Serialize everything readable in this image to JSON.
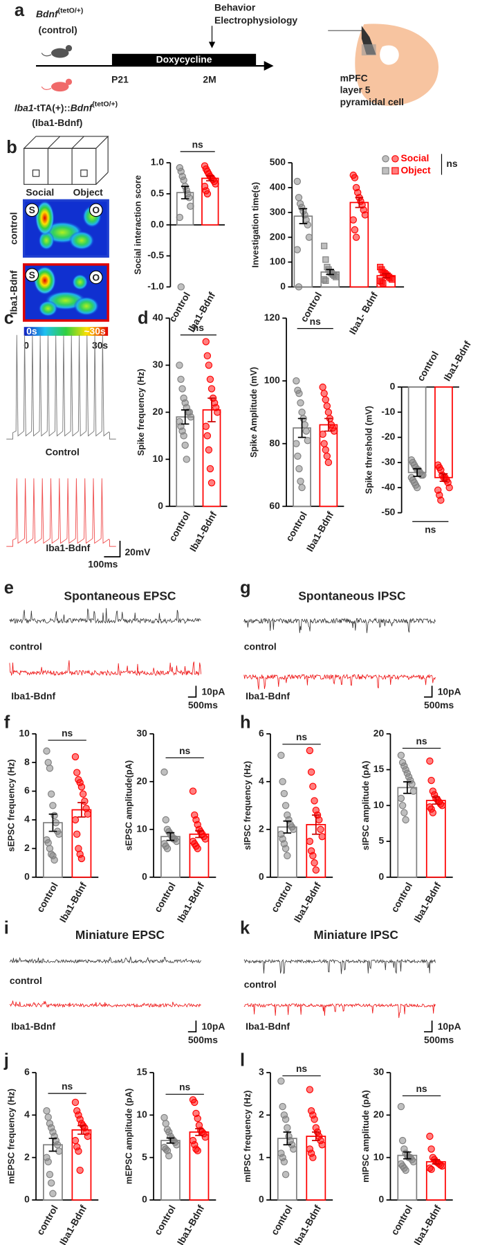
{
  "figure": {
    "panels": [
      "a",
      "b",
      "c",
      "d",
      "e",
      "f",
      "g",
      "h",
      "i",
      "k",
      "j",
      "l"
    ],
    "a": {
      "control_gene": "Bdnf",
      "control_sup": "(tetO/+)",
      "control_name": "(control)",
      "iba1_gene": "Iba1",
      "iba1_mid": "-tTA(+)::",
      "iba1_gene2": "Bdnf",
      "iba1_sup": "(tetO/+)",
      "iba1_name": "(Iba1-Bdnf)",
      "timing": [
        "Behavior",
        "Electrophysiology"
      ],
      "treatment": "Doxycycline",
      "start": "P21",
      "end": "2M",
      "region": [
        "mPFC",
        "layer 5",
        "pyramidal cell"
      ]
    },
    "b": {
      "chambers": [
        "Social",
        "Object"
      ],
      "groups": [
        "control",
        "Iba1-Bdnf"
      ],
      "markers": [
        "S",
        "O"
      ],
      "scale_inner": [
        "0s",
        "~30s"
      ],
      "scale_outer": [
        "0",
        "30s"
      ]
    },
    "c": {
      "groups": [
        "Control",
        "Iba1-Bdnf"
      ],
      "scale": [
        "20mV",
        "100ms"
      ]
    },
    "traces": [
      {
        "title": "Spontaneous EPSC",
        "groups": [
          "control",
          "Iba1-Bdnf"
        ],
        "scale": [
          "10pA",
          "500ms"
        ]
      },
      {
        "title": "Spontaneous IPSC",
        "groups": [
          "control",
          "Iba1-Bdnf"
        ],
        "scale": [
          "10pA",
          "500ms"
        ]
      },
      {
        "title": "Miniature EPSC",
        "groups": [
          "control",
          "Iba1-Bdnf"
        ],
        "scale": [
          "10pA",
          "500ms"
        ]
      },
      {
        "title": "Miniature IPSC",
        "groups": [
          "control",
          "Iba1-Bdnf"
        ],
        "scale": [
          "10pA",
          "500ms"
        ]
      }
    ]
  },
  "chart_data": [
    {
      "type": "bar",
      "ylabel": "Social interaction score",
      "categories": [
        "control",
        "Iba1-Bdnf"
      ],
      "colors": [
        "#808080",
        "#ff0000"
      ],
      "values": [
        0.52,
        0.75
      ],
      "errors": [
        0.1,
        0.04
      ],
      "points": [
        [
          0.92,
          0.86,
          0.78,
          0.72,
          0.62,
          0.56,
          0.5,
          0.44,
          0.3,
          0.12,
          -1.0
        ],
        [
          0.95,
          0.9,
          0.86,
          0.82,
          0.78,
          0.76,
          0.73,
          0.7,
          0.66,
          0.62,
          0.55,
          0.5
        ]
      ],
      "ylim": [
        -1,
        1
      ],
      "yticks": [
        {
          "value": -1,
          "label": "-1.0"
        },
        {
          "value": -0.5,
          "label": "-0.5"
        },
        {
          "value": 0,
          "label": "0.0"
        },
        {
          "value": 0.5,
          "label": "0.5"
        },
        {
          "value": 1,
          "label": "1.0"
        }
      ],
      "annotation": "ns"
    },
    {
      "type": "bar",
      "ylabel": "Investigation time(s)",
      "categories": [
        "control",
        "Iba1- Bdnf"
      ],
      "colors": [
        "#808080",
        "#ff0000"
      ],
      "series": [
        {
          "name": "Social",
          "marker": "circle",
          "values": [
            285,
            340
          ],
          "errors": [
            30,
            20
          ],
          "points": [
            [
              425,
              360,
              335,
              320,
              305,
              290,
              270,
              250,
              200,
              150,
              0
            ],
            [
              450,
              440,
              400,
              380,
              360,
              345,
              330,
              310,
              290,
              270,
              230,
              200
            ]
          ]
        },
        {
          "name": "Object",
          "marker": "square",
          "values": [
            60,
            45
          ],
          "errors": [
            10,
            8
          ],
          "points": [
            [
              165,
              110,
              80,
              70,
              60,
              55,
              50,
              45,
              40,
              30,
              25
            ],
            [
              80,
              70,
              60,
              55,
              50,
              45,
              40,
              35,
              30,
              25,
              20,
              15
            ]
          ]
        }
      ],
      "ylim": [
        0,
        500
      ],
      "yticks": [
        0,
        100,
        200,
        300,
        400,
        500
      ],
      "annotation": "ns"
    },
    {
      "type": "bar",
      "ylabel": "Spike frequency (Hz)",
      "categories": [
        "control",
        "Iba1-Bdnf"
      ],
      "colors": [
        "#808080",
        "#ff0000"
      ],
      "values": [
        19,
        20.5
      ],
      "errors": [
        1.5,
        2.5
      ],
      "points": [
        [
          30,
          27,
          25,
          23,
          22,
          21,
          20,
          20,
          19,
          18,
          17,
          16,
          15,
          13,
          10
        ],
        [
          35,
          32,
          30,
          27,
          25,
          23,
          22,
          21,
          20,
          17,
          15,
          12,
          8,
          5
        ]
      ],
      "ylim": [
        0,
        40
      ],
      "yticks": [
        0,
        10,
        20,
        30,
        40
      ],
      "annotation": "ns"
    },
    {
      "type": "bar",
      "ylabel": "Spike Amplitude (mV)",
      "categories": [
        "control",
        "Iba1-Bdnf"
      ],
      "colors": [
        "#808080",
        "#ff0000"
      ],
      "values": [
        85,
        86
      ],
      "errors": [
        3,
        2
      ],
      "points": [
        [
          100,
          97,
          96,
          93,
          90,
          88,
          86,
          84,
          81,
          80,
          76,
          72,
          68,
          66
        ],
        [
          98,
          96,
          94,
          92,
          90,
          88,
          86,
          85,
          84,
          83,
          80,
          78,
          76,
          74
        ]
      ],
      "ylim": [
        60,
        120
      ],
      "yticks": [
        60,
        80,
        100,
        120
      ],
      "annotation": "ns"
    },
    {
      "type": "bar",
      "ylabel": "Spike threshold (mV)",
      "categories": [
        "control",
        "Iba1-Bdnf"
      ],
      "colors": [
        "#808080",
        "#ff0000"
      ],
      "x_axis": "top",
      "values": [
        -34,
        -36
      ],
      "errors": [
        1.5,
        1.5
      ],
      "points": [
        [
          -29,
          -30,
          -31,
          -32,
          -33,
          -33,
          -34,
          -35,
          -35,
          -36,
          -37,
          -38,
          -39,
          -40
        ],
        [
          -31,
          -32,
          -33,
          -35,
          -36,
          -36,
          -37,
          -38,
          -40,
          -41,
          -43,
          -45
        ]
      ],
      "ylim": [
        -50,
        0
      ],
      "yticks": [
        0,
        -10,
        -20,
        -30,
        -40,
        -50
      ],
      "annotation": "ns"
    },
    {
      "type": "bar",
      "ylabel": "sEPSC frequency (Hz)",
      "categories": [
        "control",
        "Iba1-Bdnf"
      ],
      "colors": [
        "#808080",
        "#ff0000"
      ],
      "values": [
        3.8,
        4.7
      ],
      "errors": [
        0.6,
        0.5
      ],
      "points": [
        [
          8.8,
          8,
          7.6,
          5.8,
          5,
          4.3,
          3.8,
          3.2,
          3,
          2.6,
          2.4,
          2,
          1.6,
          1.5,
          1.2
        ],
        [
          8.4,
          7.3,
          6.8,
          6.6,
          6.3,
          5.8,
          5.3,
          4.8,
          4.4,
          4,
          3,
          2,
          1.6,
          1.3
        ]
      ],
      "ylim": [
        0,
        10
      ],
      "yticks": [
        0,
        2,
        4,
        6,
        8,
        10
      ],
      "annotation": "ns"
    },
    {
      "type": "bar",
      "ylabel": "sEPSC amplitude(pA)",
      "categories": [
        "control",
        "Iba1-Bdnf"
      ],
      "colors": [
        "#808080",
        "#ff0000"
      ],
      "values": [
        8.5,
        9
      ],
      "errors": [
        0.8,
        0.7
      ],
      "points": [
        [
          22,
          12,
          10,
          9.5,
          9,
          8.5,
          8,
          8,
          7.5,
          7,
          6.5,
          6
        ],
        [
          18,
          13,
          12,
          11,
          10,
          9.5,
          9,
          8.5,
          8,
          7.5,
          7,
          6.5,
          6
        ]
      ],
      "ylim": [
        0,
        30
      ],
      "yticks": [
        0,
        10,
        20,
        30
      ],
      "annotation": "ns"
    },
    {
      "type": "bar",
      "ylabel": "sIPSC frequency (Hz)",
      "categories": [
        "control",
        "Iba1-Bdnf"
      ],
      "colors": [
        "#808080",
        "#ff0000"
      ],
      "values": [
        2.1,
        2.2
      ],
      "errors": [
        0.25,
        0.4
      ],
      "points": [
        [
          5.1,
          4,
          3.5,
          3,
          2.6,
          2.4,
          2.2,
          2.1,
          2,
          1.8,
          1.6,
          1.4,
          1.2,
          0.9
        ],
        [
          5.3,
          4.4,
          3.8,
          3.2,
          2.8,
          2.6,
          2.4,
          2,
          1.7,
          1.5,
          1.1,
          0.9,
          0.6,
          0.3
        ]
      ],
      "ylim": [
        0,
        6
      ],
      "yticks": [
        0,
        2,
        4,
        6
      ],
      "annotation": "ns"
    },
    {
      "type": "bar",
      "ylabel": "sIPSC amplitude (pA)",
      "categories": [
        "control",
        "Iba1-Bdnf"
      ],
      "colors": [
        "#808080",
        "#ff0000"
      ],
      "values": [
        12.5,
        10.7
      ],
      "errors": [
        0.8,
        0.5
      ],
      "points": [
        [
          17,
          16,
          15.5,
          15,
          14.5,
          14,
          13.5,
          13,
          12,
          11,
          10,
          9,
          8
        ],
        [
          16.2,
          13.5,
          12,
          11.5,
          11,
          10.8,
          10.5,
          10.2,
          10,
          9.8,
          9.5,
          9
        ]
      ],
      "ylim": [
        0,
        20
      ],
      "yticks": [
        0,
        5,
        10,
        15,
        20
      ],
      "annotation": "ns"
    },
    {
      "type": "bar",
      "ylabel": "mEPSC frequency (Hz)",
      "categories": [
        "control",
        "Iba1-Bdnf"
      ],
      "colors": [
        "#808080",
        "#ff0000"
      ],
      "values": [
        2.6,
        3.3
      ],
      "errors": [
        0.3,
        0.2
      ],
      "points": [
        [
          4.2,
          3.9,
          3.6,
          3.4,
          3.2,
          3,
          2.8,
          2.6,
          2.3,
          2,
          1.8,
          1.2,
          0.8,
          0.3
        ],
        [
          4.6,
          4.2,
          4,
          3.8,
          3.6,
          3.5,
          3.4,
          3.2,
          3,
          2.8,
          2.5,
          2.3,
          1.4
        ]
      ],
      "ylim": [
        0,
        6
      ],
      "yticks": [
        0,
        2,
        4,
        6
      ],
      "annotation": "ns"
    },
    {
      "type": "bar",
      "ylabel": "mEPSC amplitude (pA)",
      "categories": [
        "control",
        "Iba1-Bdnf"
      ],
      "colors": [
        "#808080",
        "#ff0000"
      ],
      "values": [
        7,
        8
      ],
      "errors": [
        0.3,
        0.4
      ],
      "points": [
        [
          9.7,
          9,
          8.3,
          8,
          7.5,
          7.2,
          7,
          6.8,
          6.5,
          6.2,
          6,
          5.8,
          5.2
        ],
        [
          11.8,
          11.5,
          10.2,
          9.6,
          8.8,
          8.2,
          8,
          7.8,
          7.4,
          7,
          6.5,
          6,
          5.8
        ]
      ],
      "ylim": [
        0,
        15
      ],
      "yticks": [
        0,
        5,
        10,
        15
      ],
      "annotation": "ns"
    },
    {
      "type": "bar",
      "ylabel": "mIPSC frequency (Hz)",
      "categories": [
        "control",
        "Iba1-Bdnf"
      ],
      "colors": [
        "#808080",
        "#ff0000"
      ],
      "values": [
        1.45,
        1.5
      ],
      "errors": [
        0.15,
        0.1
      ],
      "points": [
        [
          2.8,
          2.2,
          2,
          1.9,
          1.7,
          1.5,
          1.4,
          1.3,
          1.2,
          1.1,
          1,
          0.9,
          0.6
        ],
        [
          2.6,
          2.1,
          2,
          1.9,
          1.7,
          1.6,
          1.5,
          1.4,
          1.3,
          1.2,
          1.1,
          1
        ]
      ],
      "ylim": [
        0,
        3
      ],
      "yticks": [
        0,
        1,
        2,
        3
      ],
      "annotation": "ns"
    },
    {
      "type": "bar",
      "ylabel": "mIPSC amplitude (pA)",
      "categories": [
        "control",
        "Iba1-Bdnf"
      ],
      "colors": [
        "#808080",
        "#ff0000"
      ],
      "values": [
        10.5,
        9
      ],
      "errors": [
        0.8,
        0.5
      ],
      "points": [
        [
          22,
          14,
          12,
          11,
          10.5,
          10,
          10,
          9.5,
          9,
          8.5,
          8,
          7.5,
          7
        ],
        [
          15,
          12,
          10,
          9.5,
          9,
          8.8,
          8.5,
          8.2,
          8,
          7.5,
          7.2
        ]
      ],
      "ylim": [
        0,
        30
      ],
      "yticks": [
        0,
        10,
        20,
        30
      ],
      "annotation": "ns"
    }
  ]
}
